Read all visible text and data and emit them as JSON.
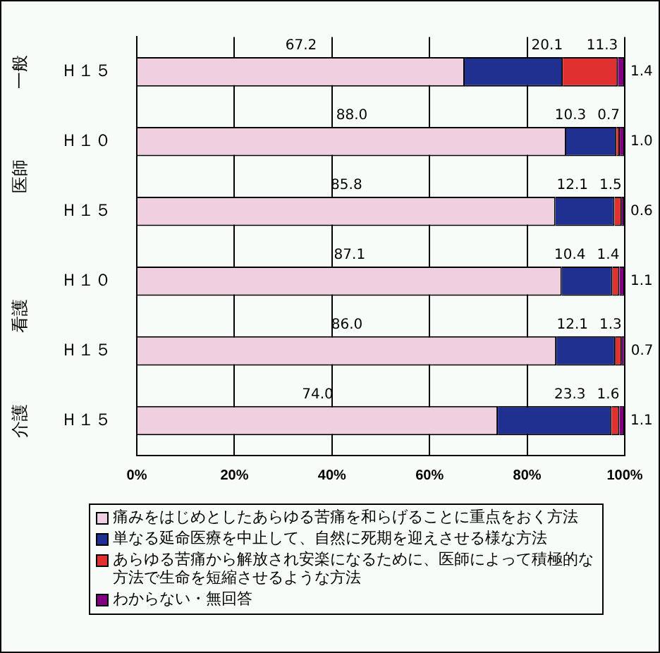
{
  "chart_data": {
    "type": "bar",
    "orientation": "horizontal",
    "stacked": true,
    "categories": [
      "Ｈ１５",
      "Ｈ１０",
      "Ｈ１５",
      "Ｈ１０",
      "Ｈ１５",
      "Ｈ１５"
    ],
    "annotations": [
      "一般",
      "医師",
      "看護",
      "介護"
    ],
    "series": [
      {
        "name": "痛みをはじめとしたあらゆる苦痛を和らげることに重点をおく方法",
        "color": "#f0d0e0",
        "values": [
          67.2,
          88.0,
          85.8,
          87.1,
          86.0,
          74.0
        ],
        "value_labels": [
          "67.2",
          "88.0",
          "85.8",
          "87.1",
          "86.0",
          "74.0"
        ]
      },
      {
        "name": "単なる延命医療を中止して、自然に死期を迎えさせる様な方法",
        "color": "#203090",
        "values": [
          20.1,
          10.3,
          12.1,
          10.4,
          12.1,
          23.3
        ],
        "value_labels": [
          "20.1",
          "10.3",
          "12.1",
          "10.4",
          "12.1",
          "23.3"
        ]
      },
      {
        "name": "あらゆる苦痛から解放され安楽になるために、医師によって積極的な方法で生命を短縮させるような方法",
        "color": "#e03030",
        "values": [
          11.3,
          0.7,
          1.5,
          1.4,
          1.3,
          1.6
        ],
        "value_labels": [
          "11.3",
          "0.7",
          "1.5",
          "1.4",
          "1.3",
          "1.6"
        ]
      },
      {
        "name": "わからない・無回答",
        "color": "#800080",
        "values": [
          1.4,
          1.0,
          0.6,
          1.1,
          0.7,
          1.1
        ],
        "value_labels": [
          "1.4",
          "1.0",
          "0.6",
          "1.1",
          "0.7",
          "1.1"
        ]
      }
    ],
    "xlim": [
      0,
      100
    ],
    "xticks": [
      {
        "value": 0,
        "label": "0%"
      },
      {
        "value": 20,
        "label": "20%"
      },
      {
        "value": 40,
        "label": "40%"
      },
      {
        "value": 60,
        "label": "60%"
      },
      {
        "value": 80,
        "label": "80%"
      },
      {
        "value": 100,
        "label": "100%"
      }
    ],
    "grid": "x",
    "legend": "bottom"
  }
}
